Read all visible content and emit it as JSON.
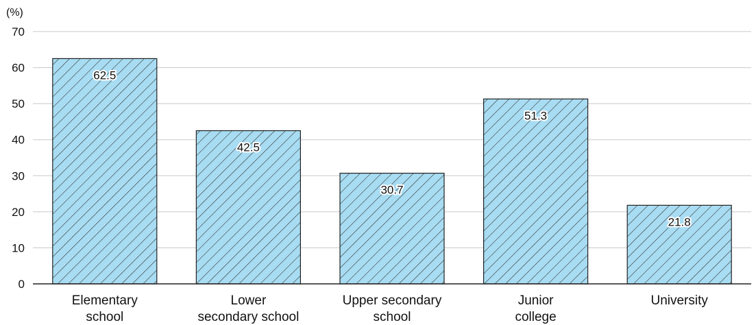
{
  "chart_data": {
    "type": "bar",
    "unit_label": "(%)",
    "categories": [
      [
        "Elementary",
        "school"
      ],
      [
        "Lower",
        "secondary school"
      ],
      [
        "Upper secondary",
        "school"
      ],
      [
        "Junior",
        "college"
      ],
      [
        "University"
      ]
    ],
    "values": [
      62.5,
      42.5,
      30.7,
      51.3,
      21.8
    ],
    "data_labels": [
      "62.5",
      "42.5",
      "30.7",
      "51.3",
      "21.8"
    ],
    "ylim": [
      0,
      70
    ],
    "yticks": [
      0,
      10,
      20,
      30,
      40,
      50,
      60,
      70
    ],
    "grid": true,
    "colors": {
      "bar_fill": "#a8dcf2",
      "hatch": "#2a2a2a",
      "bar_stroke": "#222222",
      "grid": "#c8c8c8",
      "axis": "#222222"
    }
  }
}
